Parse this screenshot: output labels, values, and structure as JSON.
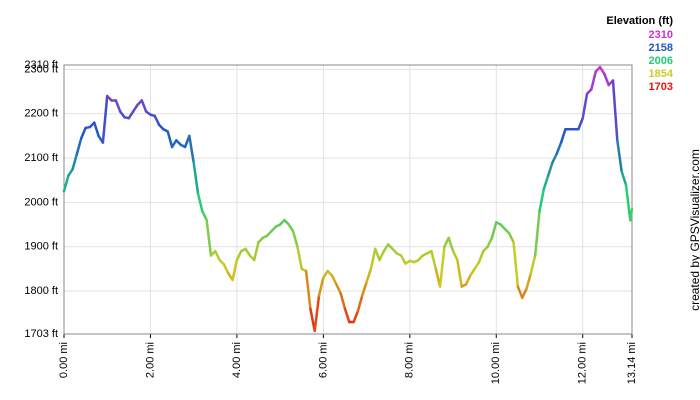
{
  "chart_data": {
    "type": "line",
    "legend_title": "Elevation (ft)",
    "credit": "created by GPSVisualizer.com",
    "color_scale": [
      {
        "value": 2310,
        "color": "#cc33cc"
      },
      {
        "value": 2158,
        "color": "#2255cc"
      },
      {
        "value": 2006,
        "color": "#22cc77"
      },
      {
        "value": 1854,
        "color": "#cccc22"
      },
      {
        "value": 1703,
        "color": "#ee1111"
      }
    ],
    "xlim": [
      0,
      13.14
    ],
    "ylim": [
      1703,
      2310
    ],
    "xticks": [
      {
        "value": 0,
        "label": "0.00 mi"
      },
      {
        "value": 2,
        "label": "2.00 mi"
      },
      {
        "value": 4,
        "label": "4.00 mi"
      },
      {
        "value": 6,
        "label": "6.00 mi"
      },
      {
        "value": 8,
        "label": "8.00 mi"
      },
      {
        "value": 10,
        "label": "10.00 mi"
      },
      {
        "value": 12,
        "label": "12.00 mi"
      },
      {
        "value": 13.14,
        "label": "13.14 mi"
      }
    ],
    "yticks": [
      {
        "value": 1703,
        "label": "1703 ft"
      },
      {
        "value": 1800,
        "label": "1800 ft"
      },
      {
        "value": 1900,
        "label": "1900 ft"
      },
      {
        "value": 2000,
        "label": "2000 ft"
      },
      {
        "value": 2100,
        "label": "2100 ft"
      },
      {
        "value": 2200,
        "label": "2200 ft"
      },
      {
        "value": 2300,
        "label": "2300 ft"
      },
      {
        "value": 2310,
        "label": "2310 ft"
      }
    ],
    "grid": true,
    "x": [
      0.0,
      0.1,
      0.2,
      0.3,
      0.4,
      0.5,
      0.6,
      0.7,
      0.8,
      0.9,
      1.0,
      1.1,
      1.2,
      1.3,
      1.4,
      1.5,
      1.6,
      1.7,
      1.8,
      1.9,
      2.0,
      2.1,
      2.2,
      2.3,
      2.4,
      2.5,
      2.6,
      2.7,
      2.8,
      2.9,
      3.0,
      3.1,
      3.2,
      3.3,
      3.4,
      3.5,
      3.6,
      3.7,
      3.8,
      3.9,
      4.0,
      4.1,
      4.2,
      4.3,
      4.4,
      4.5,
      4.6,
      4.7,
      4.8,
      4.9,
      5.0,
      5.1,
      5.2,
      5.3,
      5.4,
      5.5,
      5.6,
      5.7,
      5.8,
      5.9,
      6.0,
      6.1,
      6.2,
      6.3,
      6.4,
      6.5,
      6.6,
      6.7,
      6.8,
      6.9,
      7.0,
      7.1,
      7.2,
      7.3,
      7.4,
      7.5,
      7.6,
      7.7,
      7.8,
      7.9,
      8.0,
      8.1,
      8.2,
      8.3,
      8.4,
      8.5,
      8.6,
      8.7,
      8.8,
      8.9,
      9.0,
      9.1,
      9.2,
      9.3,
      9.4,
      9.5,
      9.6,
      9.7,
      9.8,
      9.9,
      10.0,
      10.1,
      10.2,
      10.3,
      10.4,
      10.5,
      10.6,
      10.7,
      10.8,
      10.9,
      11.0,
      11.1,
      11.2,
      11.3,
      11.4,
      11.5,
      11.6,
      11.7,
      11.8,
      11.9,
      12.0,
      12.1,
      12.2,
      12.3,
      12.4,
      12.5,
      12.6,
      12.7,
      12.8,
      12.9,
      13.0,
      13.1,
      13.14
    ],
    "values": [
      2025,
      2060,
      2075,
      2110,
      2145,
      2168,
      2170,
      2180,
      2150,
      2135,
      2240,
      2230,
      2230,
      2205,
      2192,
      2190,
      2205,
      2220,
      2230,
      2205,
      2198,
      2195,
      2175,
      2165,
      2160,
      2125,
      2140,
      2130,
      2125,
      2150,
      2090,
      2020,
      1980,
      1960,
      1880,
      1890,
      1870,
      1860,
      1840,
      1825,
      1870,
      1890,
      1895,
      1880,
      1870,
      1910,
      1920,
      1925,
      1935,
      1945,
      1950,
      1960,
      1950,
      1935,
      1900,
      1850,
      1845,
      1760,
      1710,
      1790,
      1830,
      1845,
      1835,
      1815,
      1795,
      1760,
      1730,
      1730,
      1755,
      1790,
      1820,
      1850,
      1895,
      1870,
      1890,
      1905,
      1895,
      1885,
      1880,
      1862,
      1868,
      1865,
      1870,
      1880,
      1885,
      1890,
      1850,
      1810,
      1900,
      1920,
      1890,
      1870,
      1810,
      1815,
      1835,
      1850,
      1865,
      1890,
      1900,
      1920,
      1955,
      1950,
      1940,
      1930,
      1910,
      1810,
      1785,
      1805,
      1840,
      1880,
      1980,
      2030,
      2060,
      2090,
      2110,
      2135,
      2165,
      2165,
      2165,
      2165,
      2190,
      2245,
      2255,
      2295,
      2305,
      2290,
      2265,
      2275,
      2140,
      2070,
      2040,
      1960,
      1985
    ]
  }
}
